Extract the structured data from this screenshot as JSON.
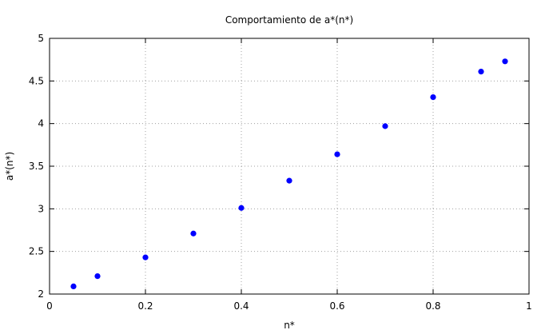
{
  "chart_data": {
    "type": "scatter",
    "title": "Comportamiento de a*(n*)",
    "xlabel": "n*",
    "ylabel": "a*(n*)",
    "xlim": [
      0,
      1
    ],
    "ylim": [
      2,
      5
    ],
    "x_ticks": [
      "0",
      "0.2",
      "0.4",
      "0.6",
      "0.8",
      "1"
    ],
    "y_ticks": [
      "2",
      "2.5",
      "3",
      "3.5",
      "4",
      "4.5",
      "5"
    ],
    "grid": true,
    "series": [
      {
        "color": "#0000ff",
        "marker": "circle",
        "x": [
          0.05,
          0.1,
          0.2,
          0.3,
          0.4,
          0.5,
          0.6,
          0.7,
          0.8,
          0.9,
          0.95
        ],
        "y": [
          2.09,
          2.21,
          2.43,
          2.71,
          3.01,
          3.33,
          3.64,
          3.97,
          4.31,
          4.61,
          4.73
        ]
      }
    ]
  }
}
